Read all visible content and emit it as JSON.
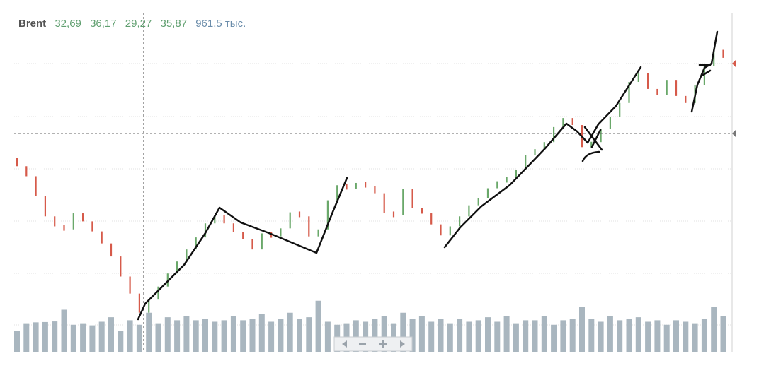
{
  "chart_data": {
    "type": "candlestick",
    "title": "Brent",
    "header_values": [
      "32,69",
      "36,17",
      "29,27",
      "35,87"
    ],
    "volume_label": "961,5 тыс.",
    "open": [
      44.3,
      43.5,
      42.5,
      40.5,
      38.5,
      37.5,
      37.2,
      38.8,
      38,
      37,
      35.8,
      34.5,
      32.5,
      30.8,
      28.9,
      30.2,
      31.5,
      32.8,
      34,
      35.2,
      36.4,
      37.8,
      38.6,
      37.8,
      36.9,
      36.2,
      35.2,
      36.8,
      36.5,
      37.3,
      38.9,
      38.5,
      36.5,
      37.2,
      40.1,
      41.6,
      41.3,
      41.8,
      41.5,
      40.8,
      38.8,
      38.6,
      41.2,
      39.3,
      38.8,
      37.7,
      36.6,
      37.5,
      38.5,
      39.6,
      40.3,
      41.3,
      42,
      42.3,
      43.1,
      44.6,
      45.2,
      45.9,
      47.4,
      48.3,
      47.6,
      45.4,
      45.9,
      47.2,
      48.4,
      49.8,
      51.9,
      52.8,
      51.2,
      50.6,
      52.1,
      50.5,
      49.8,
      51.6,
      53.5,
      55.1
    ],
    "close": [
      43.5,
      42.5,
      40.5,
      38.5,
      37.5,
      37.2,
      38.8,
      38,
      37,
      35.8,
      34.5,
      32.5,
      30.8,
      28.9,
      30.2,
      31.5,
      32.8,
      34,
      35.2,
      36.4,
      37.8,
      38.6,
      37.8,
      36.9,
      36.2,
      35.2,
      36.8,
      36.5,
      37.3,
      38.9,
      38.5,
      36.5,
      37.2,
      40.1,
      41.6,
      41.3,
      41.8,
      41.5,
      40.8,
      38.8,
      38.6,
      41.2,
      39.3,
      38.8,
      37.7,
      36.6,
      37.5,
      38.5,
      39.6,
      40.3,
      41.3,
      42,
      42.3,
      43.1,
      44.6,
      45.2,
      45.9,
      47.4,
      48.3,
      47.6,
      45.4,
      45.9,
      47.2,
      48.4,
      49.8,
      51.9,
      52.8,
      51.2,
      50.6,
      52.1,
      50.5,
      49.8,
      51.6,
      53.5,
      55.1,
      54.3
    ],
    "volume": [
      700,
      950,
      980,
      990,
      1010,
      1400,
      900,
      950,
      880,
      1000,
      1150,
      700,
      1050,
      900,
      1300,
      950,
      1150,
      1050,
      1200,
      1050,
      1100,
      1000,
      1050,
      1200,
      1050,
      1100,
      1250,
      1000,
      1100,
      1300,
      1100,
      1150,
      1700,
      1000,
      900,
      950,
      1050,
      1000,
      1100,
      1200,
      950,
      1300,
      1100,
      1200,
      1000,
      1100,
      950,
      1100,
      1000,
      1050,
      1150,
      1000,
      1200,
      950,
      1050,
      1050,
      1200,
      900,
      1050,
      1100,
      1500,
      1100,
      1000,
      1200,
      1050,
      1100,
      1150,
      1000,
      1050,
      900,
      1050,
      1000,
      950,
      1100,
      1500,
      1200
    ],
    "ylim": [
      25,
      58.8
    ],
    "volume_lim": [
      0,
      2000
    ],
    "up_color": "#6aa86a",
    "down_color": "#d65a4a",
    "volume_color": "#a9b6bf",
    "grid": true
  }
}
